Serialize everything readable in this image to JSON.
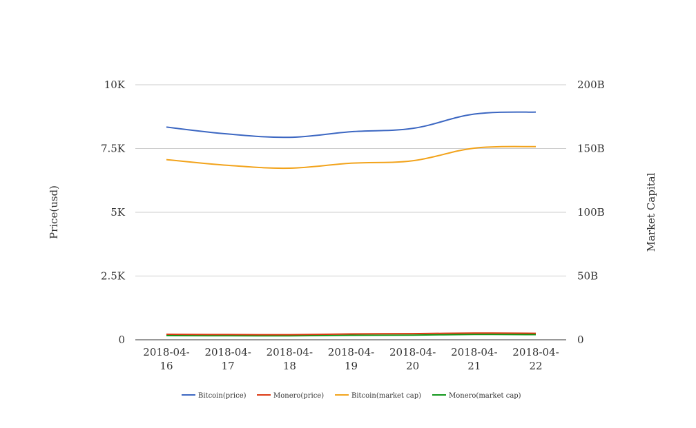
{
  "chart_data": {
    "type": "line",
    "title": "",
    "x": [
      "2018-04-16",
      "2018-04-17",
      "2018-04-18",
      "2018-04-19",
      "2018-04-20",
      "2018-04-21",
      "2018-04-22"
    ],
    "x_tick_labels": [
      [
        "2018-04-",
        "16"
      ],
      [
        "2018-04-",
        "17"
      ],
      [
        "2018-04-",
        "18"
      ],
      [
        "2018-04-",
        "19"
      ],
      [
        "2018-04-",
        "20"
      ],
      [
        "2018-04-",
        "21"
      ],
      [
        "2018-04-",
        "22"
      ]
    ],
    "y_left": {
      "label": "Price(usd)",
      "ticks": [
        0,
        2500,
        5000,
        7500,
        10000
      ],
      "tick_labels": [
        "0",
        "2.5K",
        "5K",
        "7.5K",
        "10K"
      ],
      "range": [
        0,
        10000
      ]
    },
    "y_right": {
      "label": "Market Capital",
      "ticks": [
        0,
        50000000000,
        100000000000,
        150000000000,
        200000000000
      ],
      "tick_labels": [
        "0",
        "50B",
        "100B",
        "150B",
        "200B"
      ],
      "range": [
        0,
        200000000000
      ]
    },
    "grid": true,
    "legend_position": "bottom",
    "series": [
      {
        "name": "Bitcoin(price)",
        "axis": "left",
        "color": "#3c67c2",
        "values": [
          8340,
          8070,
          7940,
          8160,
          8290,
          8850,
          8930
        ]
      },
      {
        "name": "Monero(price)",
        "axis": "left",
        "color": "#dc3912",
        "values": [
          215,
          205,
          200,
          230,
          240,
          265,
          255
        ]
      },
      {
        "name": "Bitcoin(market cap)",
        "axis": "right",
        "color": "#f2a31b",
        "values": [
          141300000000,
          136800000000,
          134600000000,
          138500000000,
          140400000000,
          150300000000,
          151500000000
        ]
      },
      {
        "name": "Monero(market cap)",
        "axis": "right",
        "color": "#109618",
        "values": [
          3300000000,
          3150000000,
          3100000000,
          3500000000,
          3650000000,
          4200000000,
          4050000000
        ]
      }
    ]
  }
}
